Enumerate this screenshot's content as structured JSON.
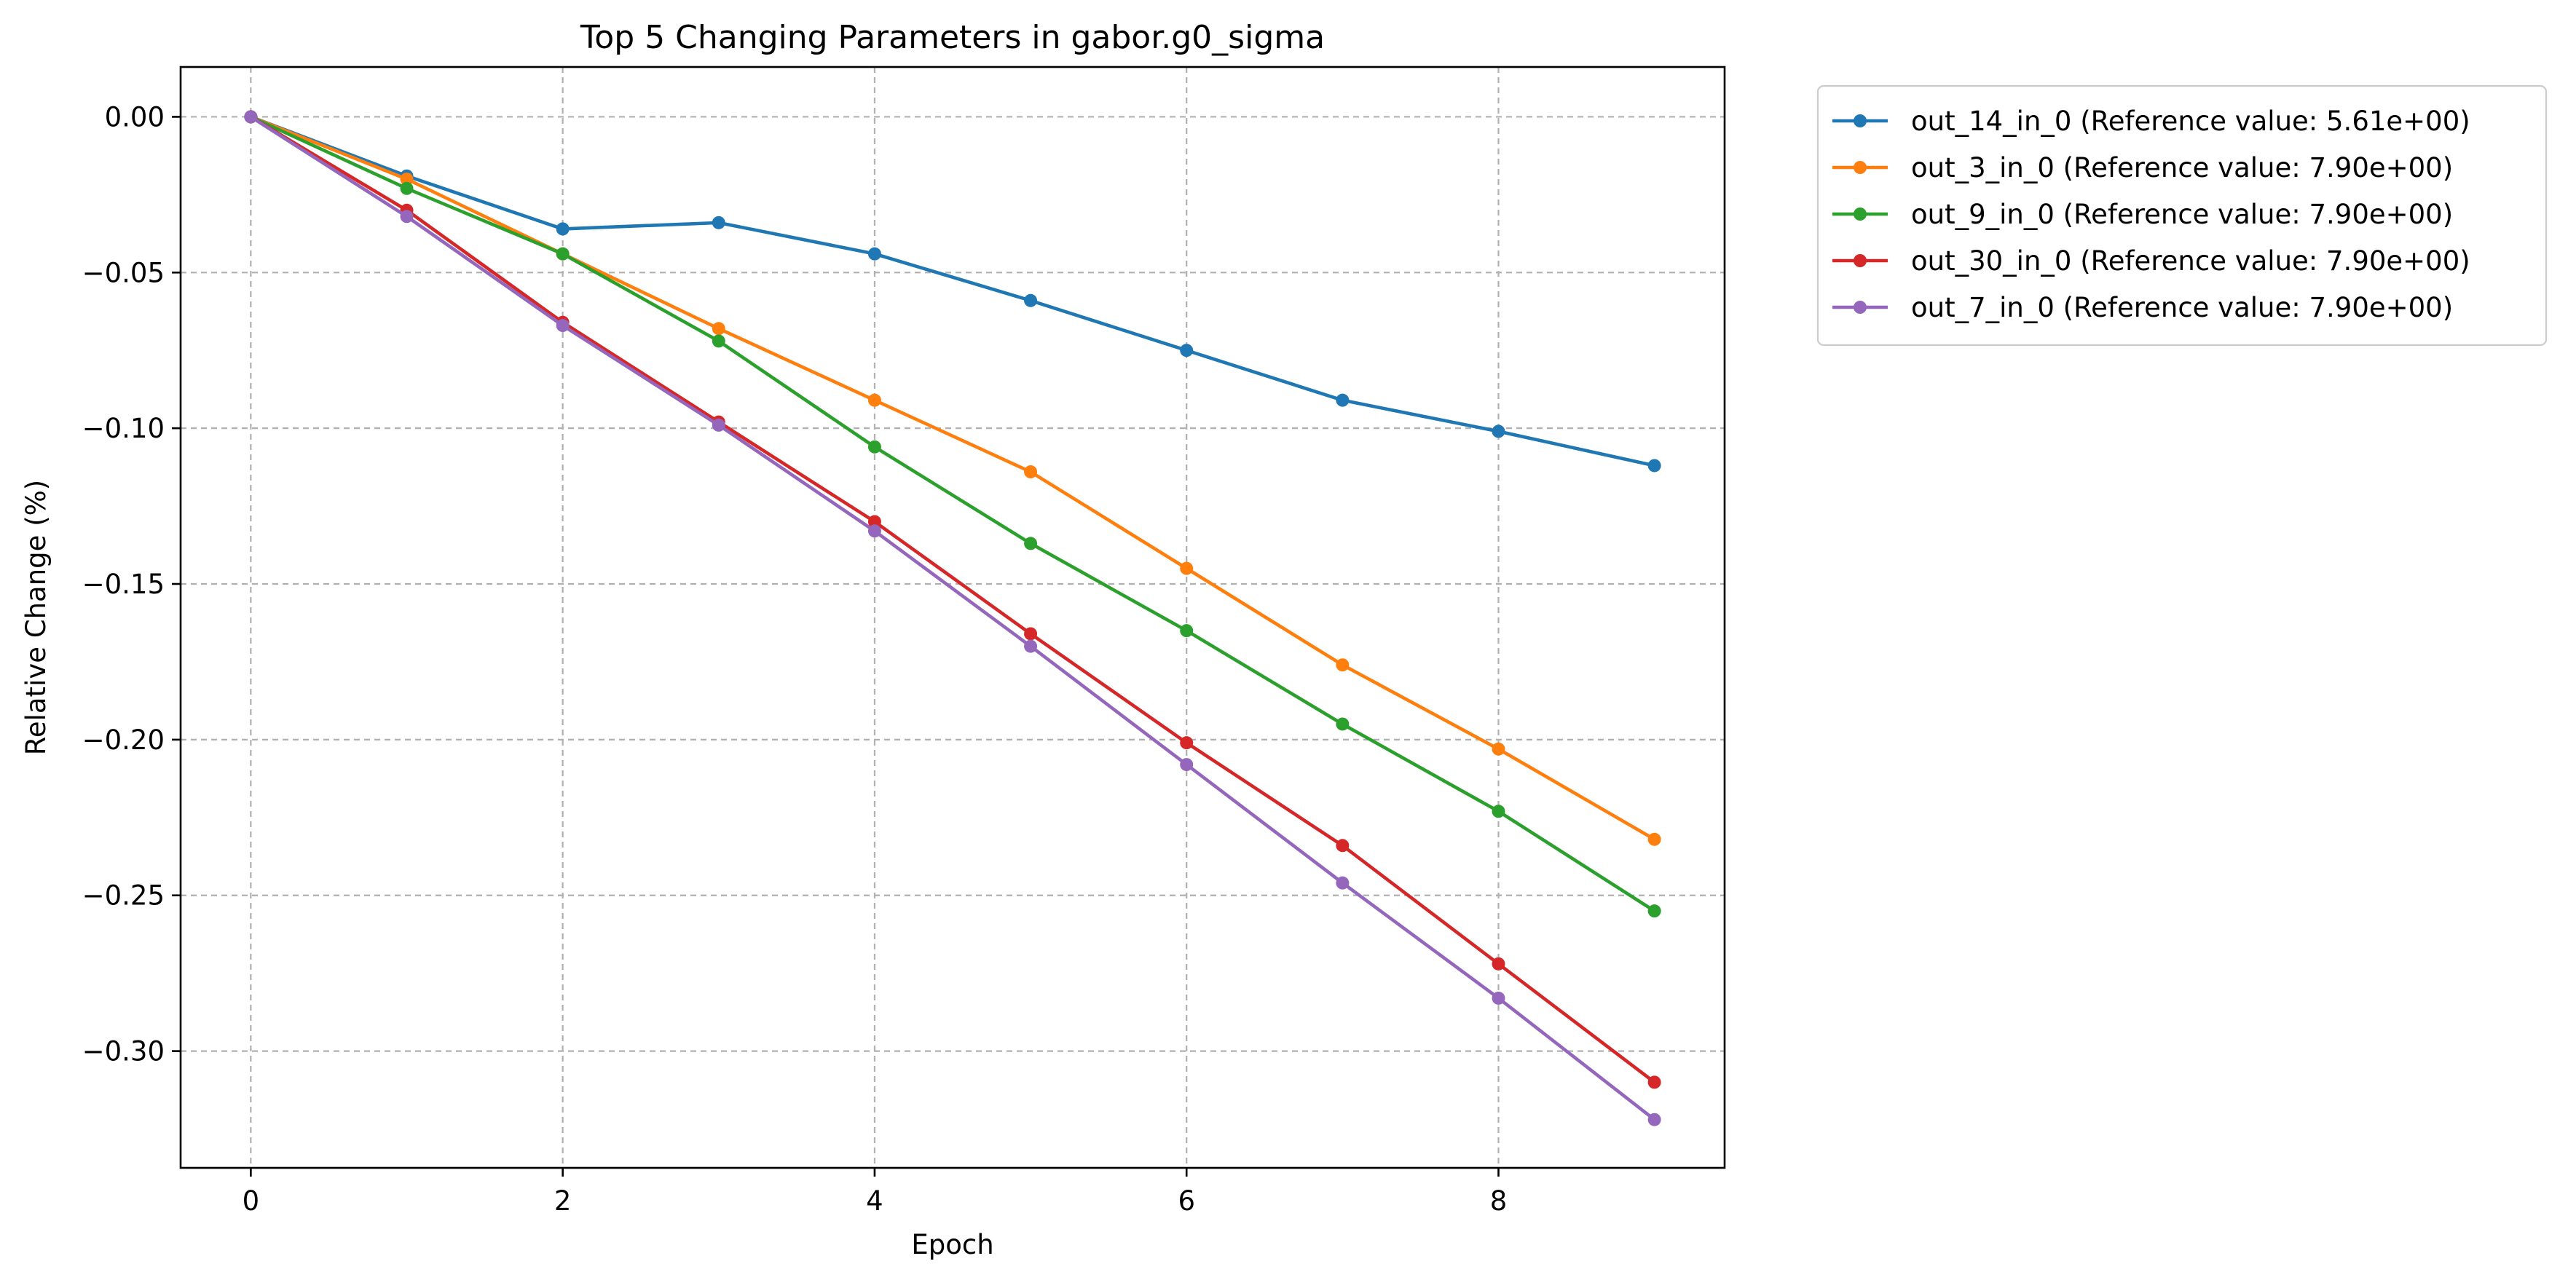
{
  "chart_data": {
    "type": "line",
    "title": "Top 5 Changing Parameters in gabor.g0_sigma",
    "xlabel": "Epoch",
    "ylabel": "Relative Change (%)",
    "xlim": [
      -0.45,
      9.45
    ],
    "ylim": [
      -0.3375,
      0.016
    ],
    "x_ticks": [
      0,
      2,
      4,
      6,
      8
    ],
    "x_tick_labels": [
      "0",
      "2",
      "4",
      "6",
      "8"
    ],
    "y_ticks": [
      0.0,
      -0.05,
      -0.1,
      -0.15,
      -0.2,
      -0.25,
      -0.3
    ],
    "y_tick_labels": [
      "0.00",
      "−0.05",
      "−0.10",
      "−0.15",
      "−0.20",
      "−0.25",
      "−0.30"
    ],
    "grid": true,
    "legend_position": "outside-top-right",
    "x": [
      0,
      1,
      2,
      3,
      4,
      5,
      6,
      7,
      8,
      9
    ],
    "series": [
      {
        "name": "out_14_in_0 (Reference value: 5.61e+00)",
        "color": "#1f77b4",
        "values": [
          0.0,
          -0.019,
          -0.036,
          -0.034,
          -0.044,
          -0.059,
          -0.075,
          -0.091,
          -0.101,
          -0.112
        ]
      },
      {
        "name": "out_3_in_0 (Reference value: 7.90e+00)",
        "color": "#ff7f0e",
        "values": [
          0.0,
          -0.02,
          -0.044,
          -0.068,
          -0.091,
          -0.114,
          -0.145,
          -0.176,
          -0.203,
          -0.232
        ]
      },
      {
        "name": "out_9_in_0 (Reference value: 7.90e+00)",
        "color": "#2ca02c",
        "values": [
          0.0,
          -0.023,
          -0.044,
          -0.072,
          -0.106,
          -0.137,
          -0.165,
          -0.195,
          -0.223,
          -0.255
        ]
      },
      {
        "name": "out_30_in_0 (Reference value: 7.90e+00)",
        "color": "#d62728",
        "values": [
          0.0,
          -0.03,
          -0.066,
          -0.098,
          -0.13,
          -0.166,
          -0.201,
          -0.234,
          -0.272,
          -0.31
        ]
      },
      {
        "name": "out_7_in_0 (Reference value: 7.90e+00)",
        "color": "#9467bd",
        "values": [
          0.0,
          -0.032,
          -0.067,
          -0.099,
          -0.133,
          -0.17,
          -0.208,
          -0.246,
          -0.283,
          -0.322
        ]
      }
    ]
  }
}
